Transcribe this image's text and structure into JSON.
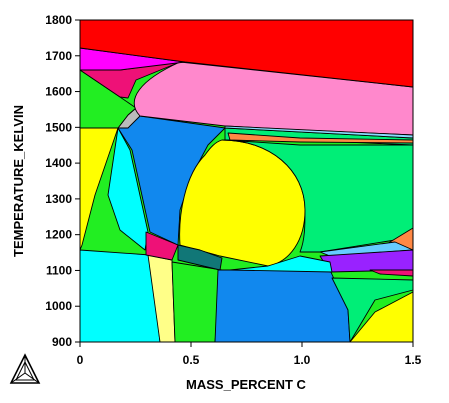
{
  "xaxis": {
    "label": "MASS_PERCENT C",
    "min": 0,
    "max": 1.5,
    "ticks": [
      {
        "v": 0,
        "label": "0"
      },
      {
        "v": 0.5,
        "label": "0.5"
      },
      {
        "v": 1.0,
        "label": "1.0"
      },
      {
        "v": 1.5,
        "label": "1.5"
      }
    ]
  },
  "yaxis": {
    "label": "TEMPERATURE_KELVIN",
    "min": 900,
    "max": 1800,
    "ticks": [
      {
        "v": 900,
        "label": "900"
      },
      {
        "v": 1000,
        "label": "1000"
      },
      {
        "v": 1100,
        "label": "1100"
      },
      {
        "v": 1200,
        "label": "1200"
      },
      {
        "v": 1300,
        "label": "1300"
      },
      {
        "v": 1400,
        "label": "1400"
      },
      {
        "v": 1500,
        "label": "1500"
      },
      {
        "v": 1600,
        "label": "1600"
      },
      {
        "v": 1700,
        "label": "1700"
      },
      {
        "v": 1800,
        "label": "1800"
      }
    ]
  },
  "colors": {
    "red": "#ff0000",
    "magenta": "#ff00ff",
    "deep_pink": "#ee1177",
    "pink": "#ff88cc",
    "green": "#00ee77",
    "lime": "#22ee22",
    "yellow": "#ffff00",
    "cyan": "#00ffff",
    "blue": "#1188ee",
    "gray": "#bbbbbb",
    "teal": "#117777",
    "purple": "#9922ff",
    "orange": "#ff8844",
    "pale_yellow": "#ffff88",
    "light_blue": "#88ddff",
    "sky": "#66ccff"
  },
  "logo_icon": "thermo-calc-triangle-icon"
}
